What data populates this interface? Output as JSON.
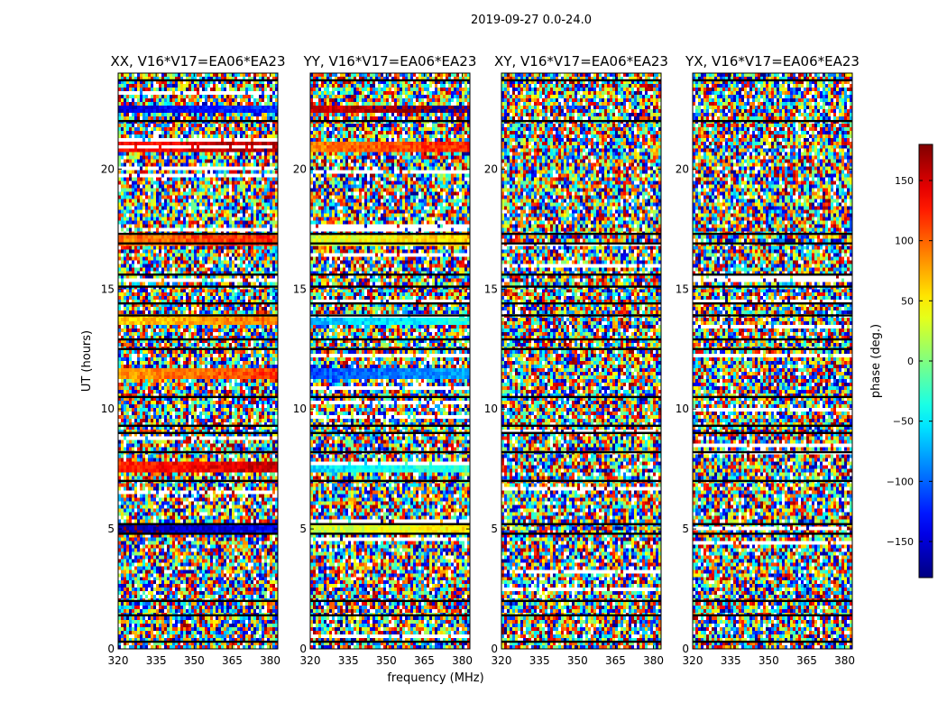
{
  "figure_title": "2019-09-27 0.0-24.0",
  "chart_data": {
    "type": "heatmap",
    "ylabel": "UT (hours)",
    "xlabel": "frequency (MHz)",
    "xlim": [
      320,
      383
    ],
    "ylim": [
      0,
      24
    ],
    "xticks": [
      320,
      335,
      350,
      365,
      380
    ],
    "yticks": [
      0,
      5,
      10,
      15,
      20
    ],
    "panels": [
      {
        "title": "XX, V16*V17=EA06*EA23",
        "polarization": "XX"
      },
      {
        "title": "YY, V16*V17=EA06*EA23",
        "polarization": "YY"
      },
      {
        "title": "XY, V16*V17=EA06*EA23",
        "polarization": "XY"
      },
      {
        "title": "YX, V16*V17=EA06*EA23",
        "polarization": "YX"
      }
    ],
    "colorbar": {
      "label": "phase (deg.)",
      "range": [
        -180,
        180
      ],
      "ticks": [
        -150,
        -100,
        -50,
        0,
        50,
        100,
        150
      ],
      "tick_labels": [
        "−150",
        "−100",
        "−50",
        "0",
        "50",
        "100",
        "150"
      ],
      "colormap": "jet"
    },
    "flagged_hours": [
      0.3,
      1.4,
      2.0,
      4.8,
      5.2,
      7.0,
      8.2,
      9.0,
      9.3,
      10.5,
      12.5,
      12.9,
      13.9,
      14.4,
      15.1,
      15.6,
      16.9,
      17.3,
      22.0,
      23.7
    ],
    "coherent_phase_bands": {
      "XX": [
        {
          "t": 22.5,
          "phase": -150
        },
        {
          "t": 20.9,
          "phase": 130
        },
        {
          "t": 17.0,
          "phase": 90
        },
        {
          "t": 13.7,
          "phase": 60
        },
        {
          "t": 11.5,
          "phase": 80
        },
        {
          "t": 7.6,
          "phase": 120
        },
        {
          "t": 5.0,
          "phase": -170
        }
      ],
      "YY": [
        {
          "t": 22.5,
          "phase": 150
        },
        {
          "t": 20.9,
          "phase": 90
        },
        {
          "t": 17.0,
          "phase": 30
        },
        {
          "t": 13.7,
          "phase": -70
        },
        {
          "t": 11.5,
          "phase": -110
        },
        {
          "t": 7.6,
          "phase": -60
        },
        {
          "t": 5.0,
          "phase": 20
        }
      ]
    }
  }
}
